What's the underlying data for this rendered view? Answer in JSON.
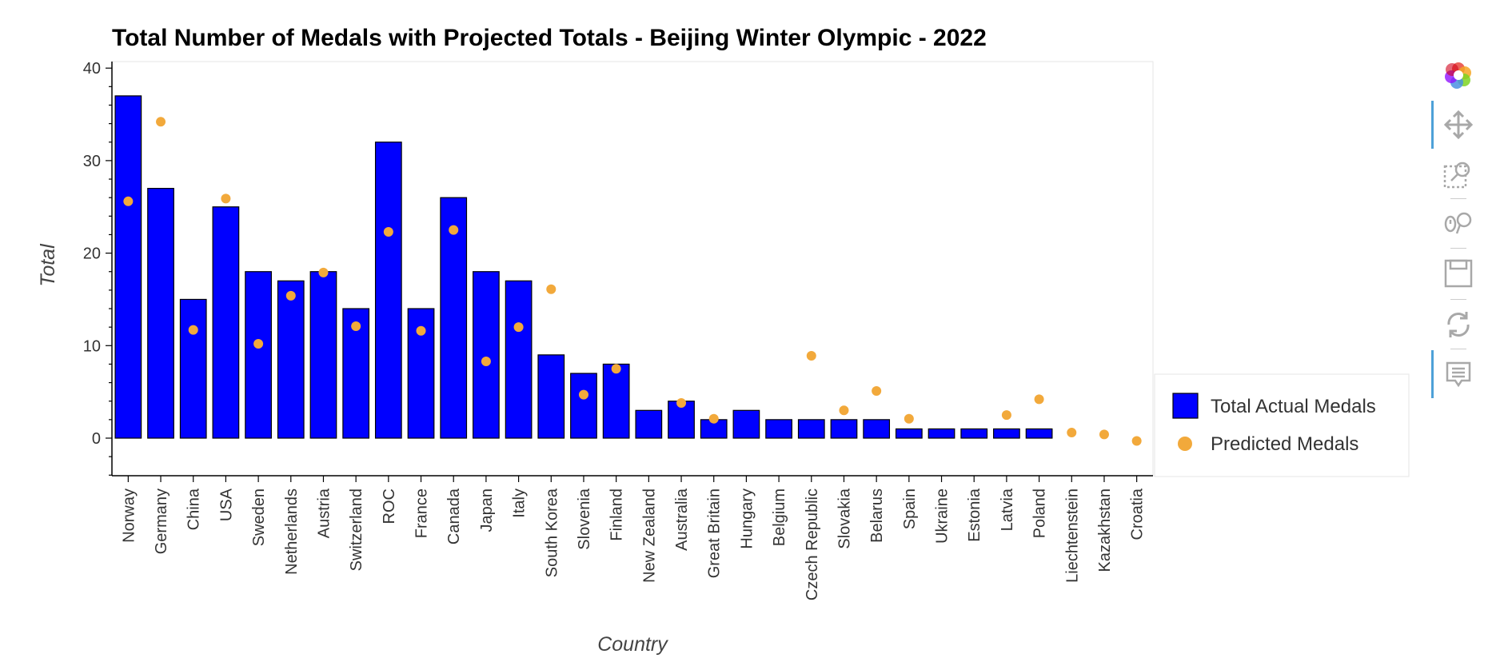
{
  "chart_data": {
    "type": "bar",
    "title": "Total Number of Medals with Projected Totals - Beijing Winter Olympic - 2022",
    "xlabel": "Country",
    "ylabel": "Total",
    "ylim": [
      -4,
      40
    ],
    "yticks": [
      0,
      10,
      20,
      30,
      40
    ],
    "grid": false,
    "legend_position": "right",
    "categories": [
      "Norway",
      "Germany",
      "China",
      "USA",
      "Sweden",
      "Netherlands",
      "Austria",
      "Switzerland",
      "ROC",
      "France",
      "Canada",
      "Japan",
      "Italy",
      "South Korea",
      "Slovenia",
      "Finland",
      "New Zealand",
      "Australia",
      "Great Britain",
      "Hungary",
      "Belgium",
      "Czech Republic",
      "Slovakia",
      "Belarus",
      "Spain",
      "Ukraine",
      "Estonia",
      "Latvia",
      "Poland",
      "Liechtenstein",
      "Kazakhstan",
      "Croatia"
    ],
    "series": [
      {
        "name": "Total Actual Medals",
        "kind": "bar",
        "color": "#0000ff",
        "values": [
          37,
          27,
          15,
          25,
          18,
          17,
          18,
          14,
          32,
          14,
          26,
          18,
          17,
          9,
          7,
          8,
          3,
          4,
          2,
          3,
          2,
          2,
          2,
          2,
          1,
          1,
          1,
          1,
          1,
          null,
          null,
          null
        ]
      },
      {
        "name": "Predicted Medals",
        "kind": "scatter",
        "color": "#f2a93b",
        "values": [
          25.6,
          34.2,
          11.7,
          25.9,
          10.2,
          15.4,
          17.9,
          12.1,
          22.3,
          11.6,
          22.5,
          8.3,
          12.0,
          16.1,
          4.7,
          7.5,
          null,
          3.8,
          2.1,
          null,
          null,
          8.9,
          3.0,
          5.1,
          2.1,
          null,
          null,
          2.5,
          4.2,
          0.6,
          0.4,
          -0.3
        ]
      }
    ]
  },
  "toolbar": {
    "tools": [
      "bokeh-logo-icon",
      "pan-icon",
      "box-zoom-icon",
      "wheel-zoom-icon",
      "save-icon",
      "reset-icon",
      "hover-icon"
    ]
  }
}
